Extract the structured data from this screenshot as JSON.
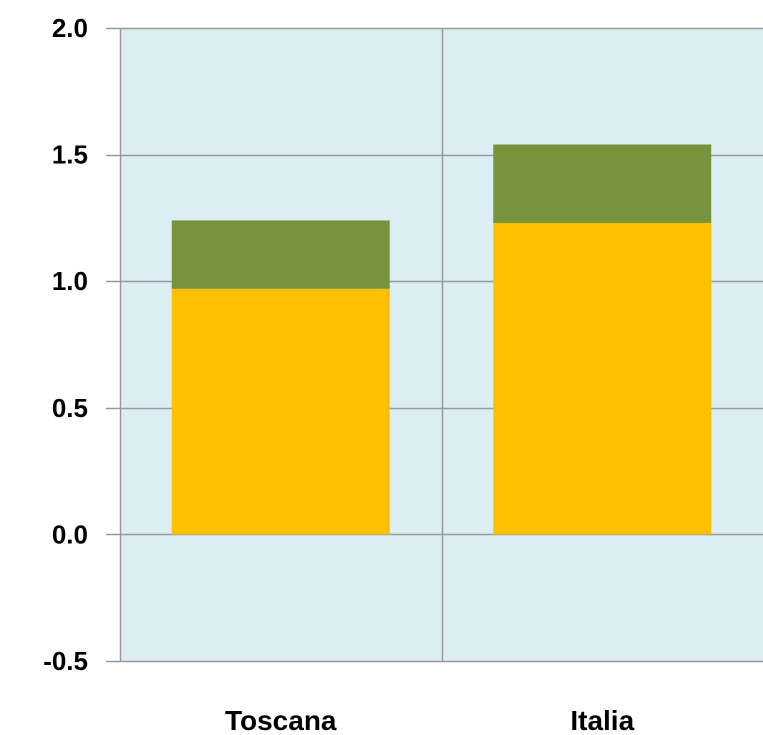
{
  "chart_data": {
    "type": "bar",
    "stacked": true,
    "categories": [
      "Toscana",
      "Italia"
    ],
    "series": [
      {
        "values": [
          0.97,
          1.23
        ],
        "color": "#ffc000"
      },
      {
        "values": [
          0.27,
          0.31
        ],
        "color": "#77933c"
      }
    ],
    "ylim": [
      -0.5,
      2.0
    ],
    "yticks": [
      -0.5,
      0.0,
      0.5,
      1.0,
      1.5,
      2.0
    ],
    "ytick_labels": [
      "-0.5",
      "0.0",
      "0.5",
      "1.0",
      "1.5",
      "2.0"
    ],
    "grid": true,
    "plot_background": "#dbeef4",
    "grid_color": "#999999",
    "xlabel": "",
    "ylabel": "",
    "title": ""
  }
}
